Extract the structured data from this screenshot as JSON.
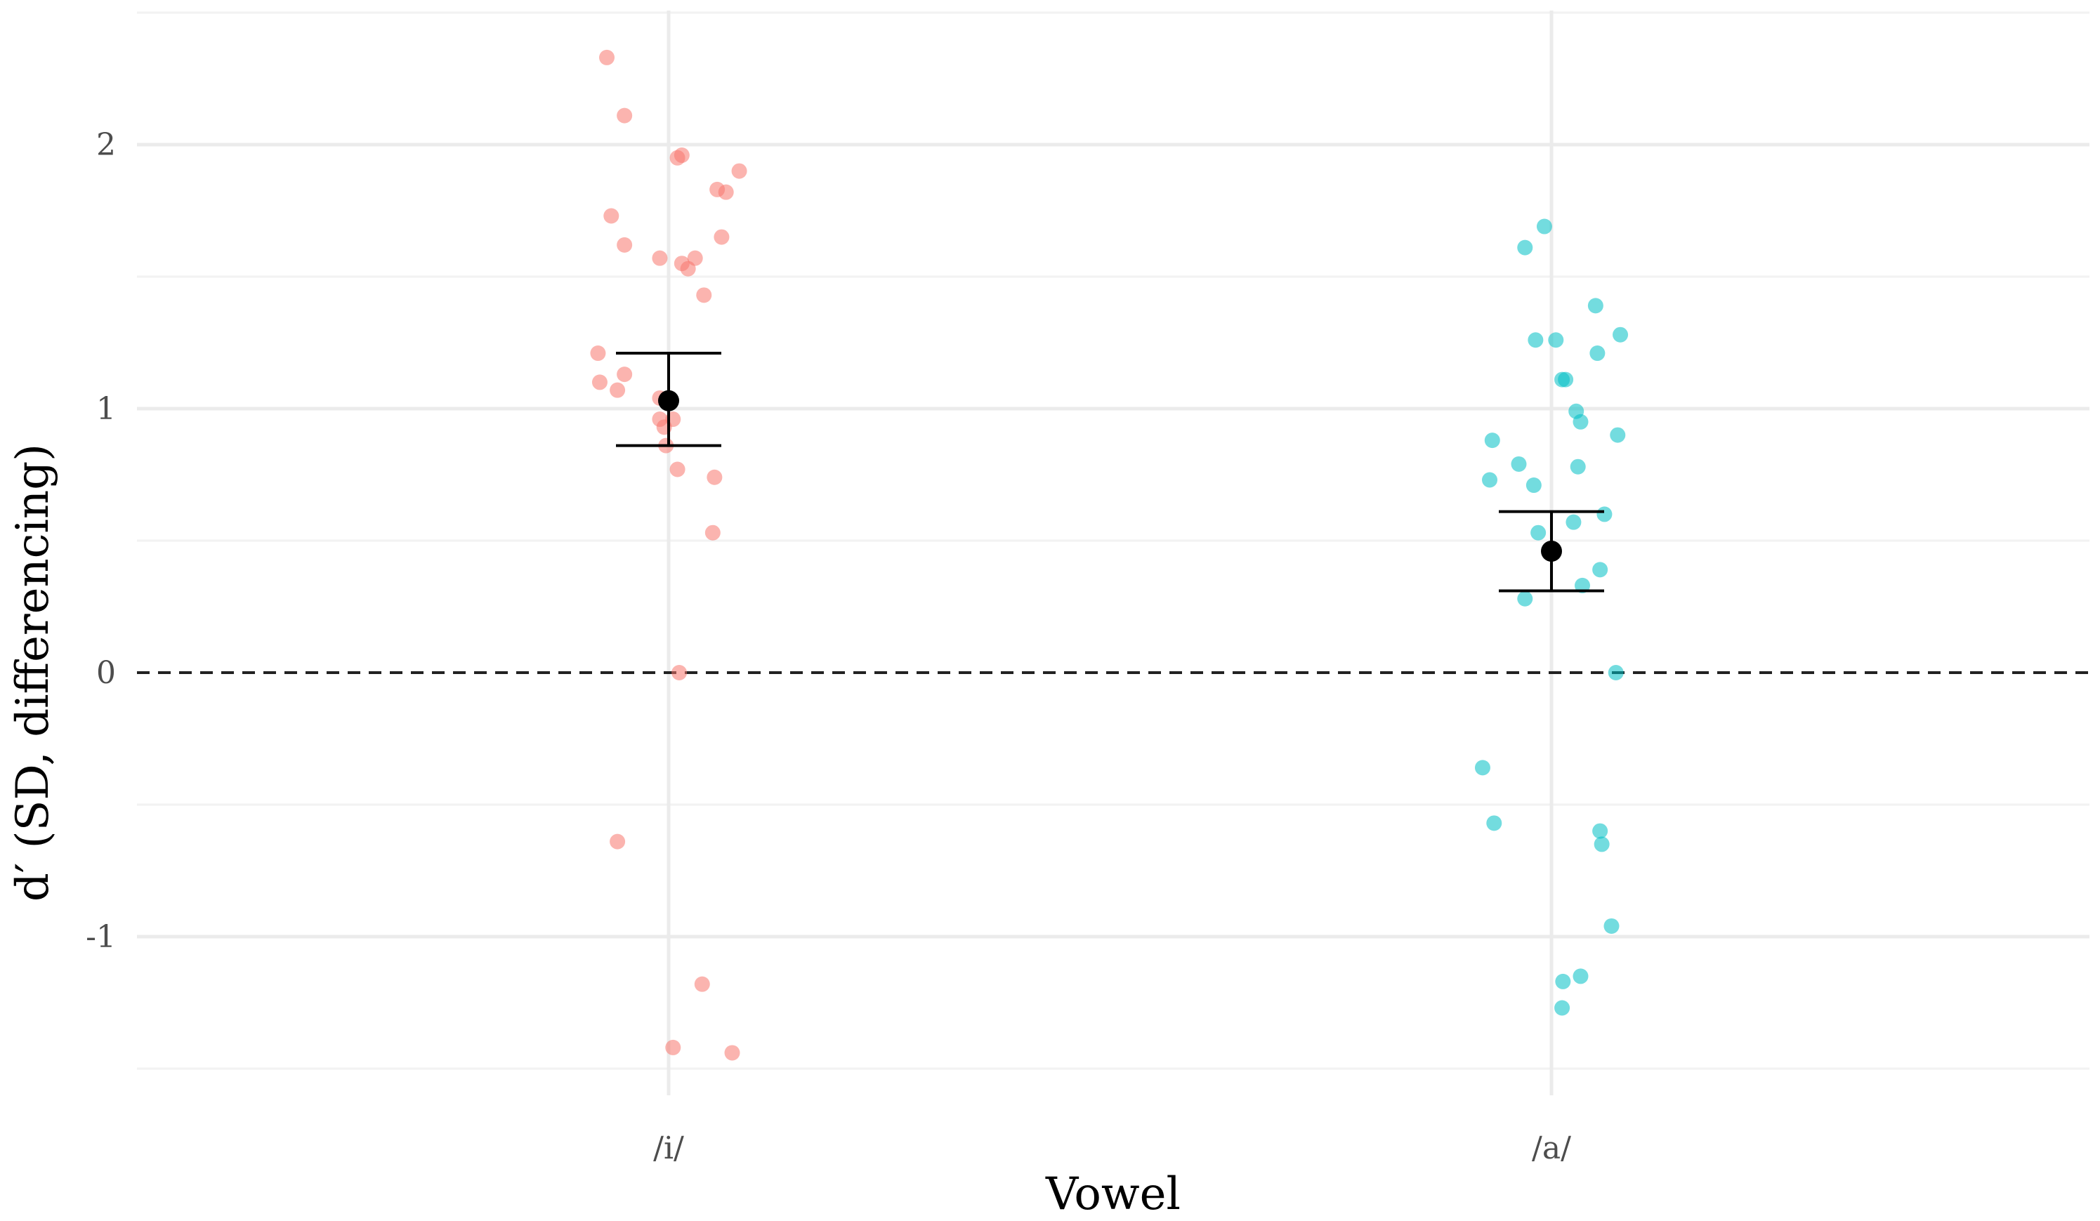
{
  "chart_data": {
    "type": "scatter",
    "title": "",
    "xlabel": "Vowel",
    "ylabel": "d′ (SD, differencing)",
    "categories": [
      "/i/",
      "/a/"
    ],
    "ylim": [
      -1.5,
      2.5
    ],
    "yticks": [
      -1,
      0,
      1,
      2
    ],
    "ytick_labels": [
      "-1",
      "0",
      "1",
      "2"
    ],
    "reference_line": {
      "y": 0,
      "style": "dashed"
    },
    "grid": true,
    "legend": "none",
    "series": [
      {
        "name": "/i/",
        "color": "#f8766d",
        "points": [
          {
            "dx": -0.07,
            "y": 2.33
          },
          {
            "dx": -0.05,
            "y": 2.11
          },
          {
            "dx": 0.01,
            "y": 1.95
          },
          {
            "dx": 0.015,
            "y": 1.96
          },
          {
            "dx": 0.08,
            "y": 1.9
          },
          {
            "dx": 0.055,
            "y": 1.83
          },
          {
            "dx": 0.065,
            "y": 1.82
          },
          {
            "dx": -0.065,
            "y": 1.73
          },
          {
            "dx": 0.06,
            "y": 1.65
          },
          {
            "dx": -0.05,
            "y": 1.62
          },
          {
            "dx": -0.01,
            "y": 1.57
          },
          {
            "dx": 0.03,
            "y": 1.57
          },
          {
            "dx": 0.015,
            "y": 1.55
          },
          {
            "dx": 0.022,
            "y": 1.53
          },
          {
            "dx": 0.04,
            "y": 1.43
          },
          {
            "dx": -0.08,
            "y": 1.21
          },
          {
            "dx": -0.05,
            "y": 1.13
          },
          {
            "dx": -0.078,
            "y": 1.1
          },
          {
            "dx": -0.058,
            "y": 1.07
          },
          {
            "dx": -0.01,
            "y": 1.04
          },
          {
            "dx": -0.01,
            "y": 0.96
          },
          {
            "dx": 0.005,
            "y": 0.96
          },
          {
            "dx": -0.005,
            "y": 0.93
          },
          {
            "dx": -0.003,
            "y": 0.86
          },
          {
            "dx": 0.01,
            "y": 0.77
          },
          {
            "dx": 0.052,
            "y": 0.74
          },
          {
            "dx": 0.05,
            "y": 0.53
          },
          {
            "dx": 0.012,
            "y": 0.0
          },
          {
            "dx": -0.058,
            "y": -0.64
          },
          {
            "dx": 0.038,
            "y": -1.18
          },
          {
            "dx": 0.005,
            "y": -1.42
          },
          {
            "dx": 0.072,
            "y": -1.44
          }
        ],
        "mean": 1.03,
        "ci_low": 0.86,
        "ci_high": 1.21
      },
      {
        "name": "/a/",
        "color": "#00bfc4",
        "points": [
          {
            "dx": -0.008,
            "y": 1.69
          },
          {
            "dx": -0.03,
            "y": 1.61
          },
          {
            "dx": 0.05,
            "y": 1.39
          },
          {
            "dx": 0.078,
            "y": 1.28
          },
          {
            "dx": -0.018,
            "y": 1.26
          },
          {
            "dx": 0.005,
            "y": 1.26
          },
          {
            "dx": 0.052,
            "y": 1.21
          },
          {
            "dx": 0.012,
            "y": 1.11
          },
          {
            "dx": 0.016,
            "y": 1.11
          },
          {
            "dx": 0.028,
            "y": 0.99
          },
          {
            "dx": 0.033,
            "y": 0.95
          },
          {
            "dx": 0.075,
            "y": 0.9
          },
          {
            "dx": -0.067,
            "y": 0.88
          },
          {
            "dx": -0.037,
            "y": 0.79
          },
          {
            "dx": 0.03,
            "y": 0.78
          },
          {
            "dx": -0.07,
            "y": 0.73
          },
          {
            "dx": -0.02,
            "y": 0.71
          },
          {
            "dx": 0.06,
            "y": 0.6
          },
          {
            "dx": 0.025,
            "y": 0.57
          },
          {
            "dx": -0.015,
            "y": 0.53
          },
          {
            "dx": 0.055,
            "y": 0.39
          },
          {
            "dx": 0.035,
            "y": 0.33
          },
          {
            "dx": -0.03,
            "y": 0.28
          },
          {
            "dx": 0.073,
            "y": 0.0
          },
          {
            "dx": -0.078,
            "y": -0.36
          },
          {
            "dx": -0.065,
            "y": -0.57
          },
          {
            "dx": 0.055,
            "y": -0.6
          },
          {
            "dx": 0.057,
            "y": -0.65
          },
          {
            "dx": 0.068,
            "y": -0.96
          },
          {
            "dx": 0.033,
            "y": -1.15
          },
          {
            "dx": 0.013,
            "y": -1.17
          },
          {
            "dx": 0.012,
            "y": -1.27
          }
        ],
        "mean": 0.46,
        "ci_low": 0.31,
        "ci_high": 0.61
      }
    ]
  }
}
